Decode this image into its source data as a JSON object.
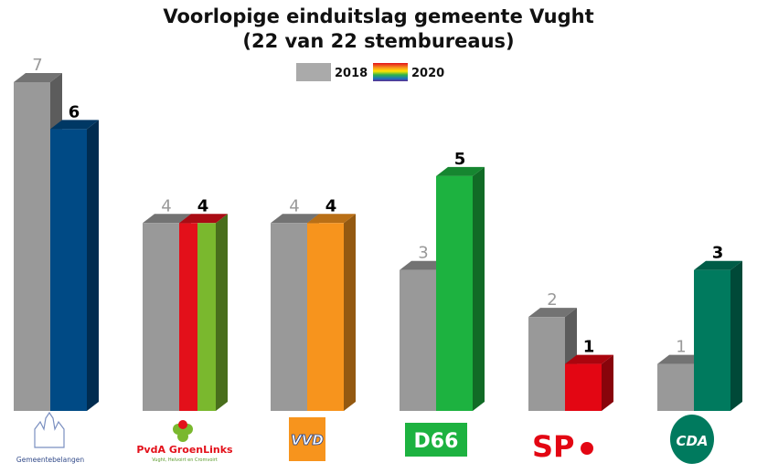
{
  "chart_data": {
    "type": "bar",
    "title": "Voorlopige einduitslag gemeente Vught",
    "subtitle": "(22 van 22 stembureaus)",
    "categories": [
      "Gemeentebelangen",
      "PvdA GroenLinks",
      "VVD",
      "D66",
      "SP",
      "CDA"
    ],
    "series": [
      {
        "name": "2018",
        "values": [
          7,
          4,
          4,
          3,
          2,
          1
        ],
        "color": "#999999"
      },
      {
        "name": "2020",
        "values": [
          6,
          4,
          4,
          5,
          1,
          3
        ],
        "colors": [
          "#004a85",
          [
            "#e3101a",
            "#7ab82e"
          ],
          "#f7941d",
          "#1db240",
          "#e30613",
          "#007a5e"
        ]
      }
    ],
    "ylim": [
      0,
      7
    ],
    "grid": false,
    "legend": "top-center",
    "xlabel": "",
    "ylabel": ""
  },
  "logos": {
    "gb": "Gemeentebelangen",
    "pvda_gl": "PvdA GroenLinks",
    "pvda_gl_sub": "Vught, Helvoirt en Cromvoirt",
    "vvd": "VVD",
    "d66": "D66",
    "sp": "SP",
    "cda": "CDA"
  }
}
